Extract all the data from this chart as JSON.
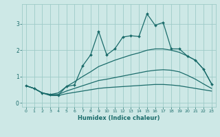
{
  "xlabel": "Humidex (Indice chaleur)",
  "bg_color": "#cde8e6",
  "grid_color": "#9ecbc8",
  "line_color": "#1a6b6a",
  "xlim": [
    -0.5,
    23.5
  ],
  "ylim": [
    -0.15,
    3.75
  ],
  "x_ticks": [
    0,
    1,
    2,
    3,
    4,
    5,
    6,
    7,
    8,
    9,
    10,
    11,
    12,
    13,
    14,
    15,
    16,
    17,
    18,
    19,
    20,
    21,
    22,
    23
  ],
  "y_ticks": [
    0,
    1,
    2,
    3
  ],
  "jagged_x": [
    0,
    1,
    2,
    3,
    4,
    5,
    6,
    7,
    8,
    9,
    10,
    11,
    12,
    13,
    14,
    15,
    16,
    17,
    18,
    19,
    20,
    21,
    22,
    23
  ],
  "jagged_y": [
    0.65,
    0.55,
    0.38,
    0.32,
    0.3,
    0.62,
    0.68,
    1.4,
    1.82,
    2.72,
    1.82,
    2.05,
    2.5,
    2.55,
    2.52,
    3.38,
    2.95,
    3.05,
    2.05,
    2.05,
    1.78,
    1.62,
    1.28,
    0.72
  ],
  "upper_env_x": [
    0,
    1,
    2,
    3,
    4,
    5,
    6,
    7,
    8,
    9,
    10,
    11,
    12,
    13,
    14,
    15,
    16,
    17,
    18,
    19,
    20,
    21,
    22,
    23
  ],
  "upper_env_y": [
    0.65,
    0.55,
    0.38,
    0.32,
    0.38,
    0.62,
    0.8,
    1.0,
    1.18,
    1.38,
    1.5,
    1.62,
    1.72,
    1.82,
    1.9,
    2.0,
    2.05,
    2.05,
    2.0,
    1.92,
    1.78,
    1.62,
    1.28,
    0.72
  ],
  "mid_env_x": [
    0,
    1,
    2,
    3,
    4,
    5,
    6,
    7,
    8,
    9,
    10,
    11,
    12,
    13,
    14,
    15,
    16,
    17,
    18,
    19,
    20,
    21,
    22,
    23
  ],
  "mid_env_y": [
    0.65,
    0.55,
    0.38,
    0.3,
    0.32,
    0.45,
    0.55,
    0.65,
    0.75,
    0.85,
    0.9,
    0.96,
    1.02,
    1.08,
    1.14,
    1.2,
    1.24,
    1.26,
    1.24,
    1.18,
    1.05,
    0.9,
    0.72,
    0.55
  ],
  "lower_env_x": [
    0,
    1,
    2,
    3,
    4,
    5,
    6,
    7,
    8,
    9,
    10,
    11,
    12,
    13,
    14,
    15,
    16,
    17,
    18,
    19,
    20,
    21,
    22,
    23
  ],
  "lower_env_y": [
    0.65,
    0.55,
    0.38,
    0.28,
    0.28,
    0.35,
    0.4,
    0.45,
    0.5,
    0.55,
    0.58,
    0.6,
    0.62,
    0.64,
    0.66,
    0.68,
    0.7,
    0.7,
    0.68,
    0.65,
    0.6,
    0.55,
    0.5,
    0.45
  ]
}
